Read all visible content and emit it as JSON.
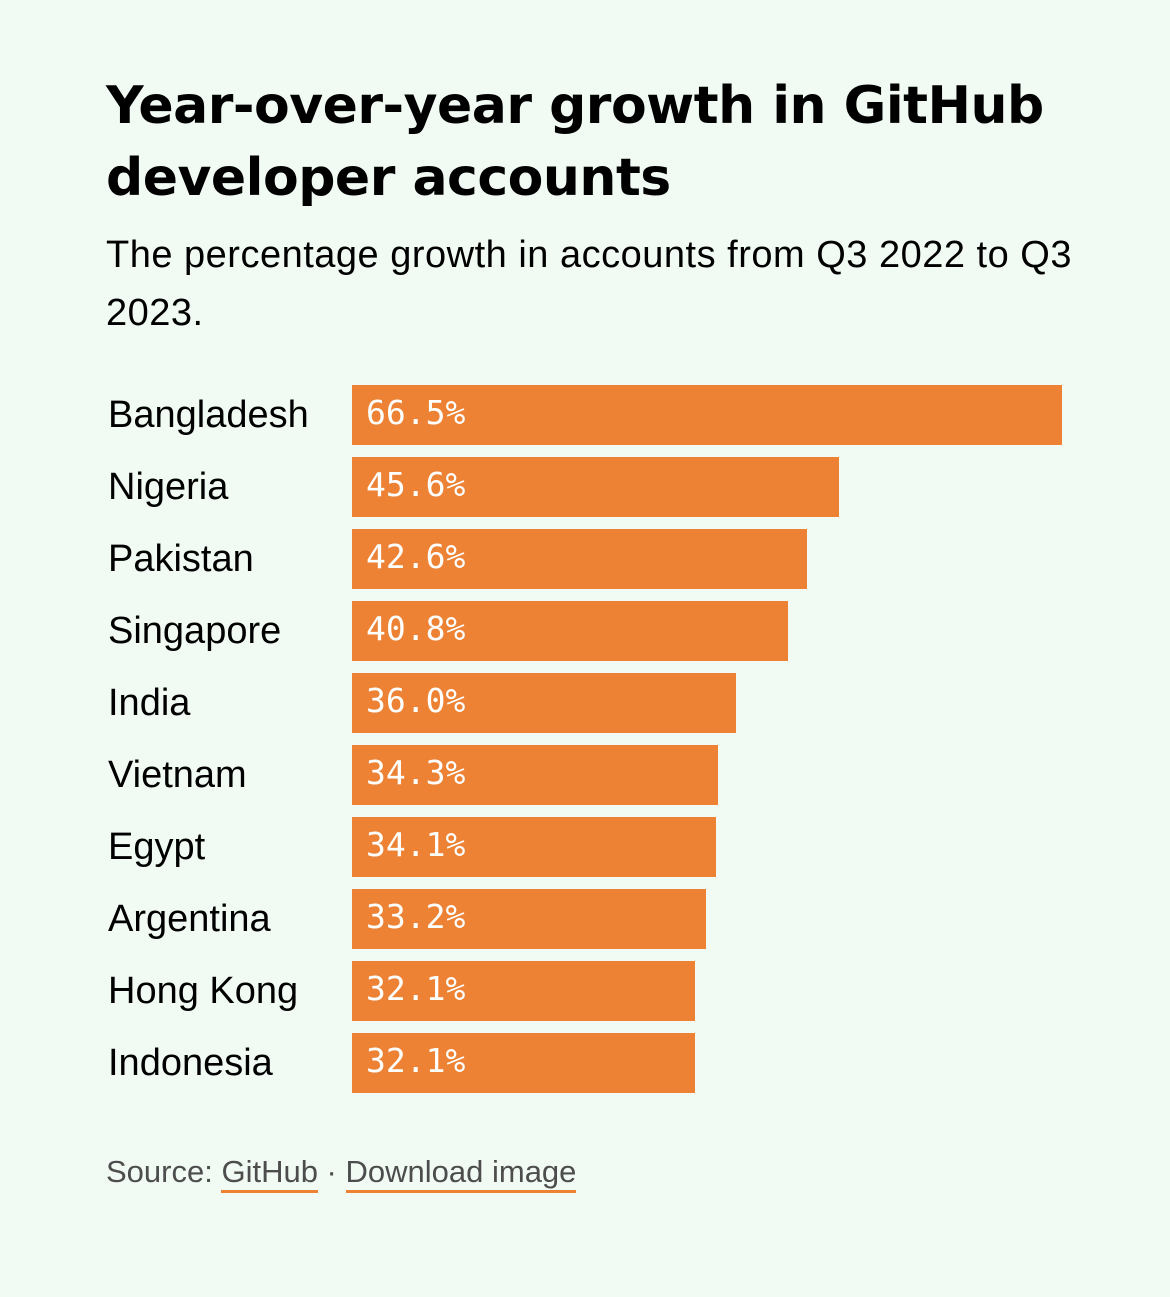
{
  "header": {
    "title": "Year-over-year growth in GitHub developer accounts",
    "subtitle": "The percentage growth in accounts from Q3 2022 to Q3 2023."
  },
  "footer": {
    "source_prefix": "Source: ",
    "source_link": "GitHub",
    "separator": " · ",
    "download_link": "Download image"
  },
  "colors": {
    "background": "#f1fbf4",
    "bar": "#ed8234",
    "link_underline": "#ed8234"
  },
  "chart_data": {
    "type": "bar",
    "orientation": "horizontal",
    "title": "Year-over-year growth in GitHub developer accounts",
    "subtitle": "The percentage growth in accounts from Q3 2022 to Q3 2023.",
    "categories": [
      "Bangladesh",
      "Nigeria",
      "Pakistan",
      "Singapore",
      "India",
      "Vietnam",
      "Egypt",
      "Argentina",
      "Hong Kong",
      "Indonesia"
    ],
    "values": [
      66.5,
      45.6,
      42.6,
      40.8,
      36.0,
      34.3,
      34.1,
      33.2,
      32.1,
      32.1
    ],
    "value_labels": [
      "66.5%",
      "45.6%",
      "42.6%",
      "40.8%",
      "36.0%",
      "34.3%",
      "34.1%",
      "33.2%",
      "32.1%",
      "32.1%"
    ],
    "unit": "%",
    "grid": false,
    "legend": "none"
  }
}
